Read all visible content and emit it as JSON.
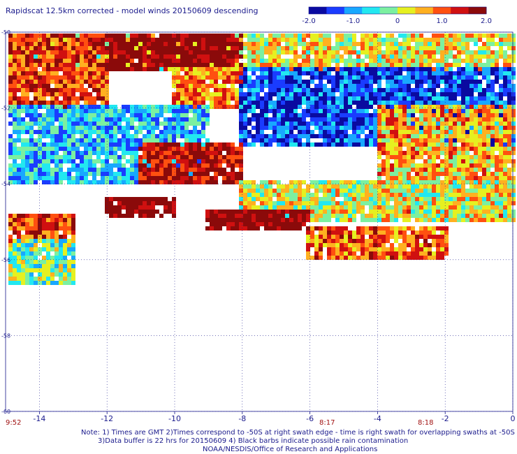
{
  "title": "Rapidscat 12.5km corrected - model winds 20150609 descending",
  "colorbar": {
    "ticks": [
      "-2.0",
      "-1.0",
      "0",
      "1.0",
      "2.0"
    ],
    "range": [
      -2.0,
      2.0
    ],
    "colors": [
      "#0a0aa0",
      "#1a3cff",
      "#18a8ff",
      "#22e8f0",
      "#7cf0a0",
      "#e6f020",
      "#ffb020",
      "#ff5010",
      "#d01010",
      "#8b0a0a"
    ]
  },
  "time_labels": [
    "9:52",
    "8:17",
    "8:18"
  ],
  "notes": [
    "Note: 1) Times are GMT 2)Times correspond to -50S at right swath edge - time is right swath for overlapping swaths at -50S",
    "3)Data buffer is 22 hrs for 20150609 4) Black barbs indicate possible rain contamination",
    "NOAA/NESDIS/Office of Research and Applications"
  ],
  "chart_data": {
    "type": "heatmap",
    "title": "Rapidscat 12.5km corrected - model winds 20150609 descending",
    "xlabel": "",
    "ylabel": "",
    "xlim": [
      -15,
      0
    ],
    "ylim": [
      -60,
      -50
    ],
    "x_ticks": [
      "-14",
      "-12",
      "-10",
      "-8",
      "-6",
      "-4",
      "-2",
      "0"
    ],
    "y_ticks": [
      "-50",
      "-52",
      "-54",
      "-56",
      "-58",
      "-60"
    ],
    "grid": true,
    "color_range": [
      -2.0,
      2.0
    ],
    "regions": [
      {
        "lon": [
          -15,
          0
        ],
        "lat": [
          -51,
          -50
        ],
        "mean": 0.3
      },
      {
        "lon": [
          -15,
          -12
        ],
        "lat": [
          -52,
          -50
        ],
        "mean": 1.2
      },
      {
        "lon": [
          -12,
          -8
        ],
        "lat": [
          -51,
          -50
        ],
        "mean": 2.0
      },
      {
        "lon": [
          -10,
          -8
        ],
        "lat": [
          -52,
          -51
        ],
        "mean": 0.8
      },
      {
        "lon": [
          -8,
          0
        ],
        "lat": [
          -53,
          -51
        ],
        "mean": -1.4
      },
      {
        "lon": [
          -15,
          -9
        ],
        "lat": [
          -54,
          -52
        ],
        "mean": -0.8
      },
      {
        "lon": [
          -11,
          -8
        ],
        "lat": [
          -54,
          -53
        ],
        "mean": 1.6
      },
      {
        "lon": [
          -4,
          0
        ],
        "lat": [
          -55,
          -52
        ],
        "mean": 0.6
      },
      {
        "lon": [
          -8,
          0
        ],
        "lat": [
          -55,
          -54
        ],
        "mean": 0.2
      },
      {
        "lon": [
          -12,
          -10
        ],
        "lat": [
          -54.8,
          -54.4
        ],
        "mean": 2.0
      },
      {
        "lon": [
          -9,
          -6
        ],
        "lat": [
          -55.2,
          -54.7
        ],
        "mean": 2.0
      },
      {
        "lon": [
          -6,
          -2
        ],
        "lat": [
          -56,
          -55.2
        ],
        "mean": 1.0
      },
      {
        "lon": [
          -15,
          -13
        ],
        "lat": [
          -55.5,
          -54.8
        ],
        "mean": 1.3
      },
      {
        "lon": [
          -15,
          -13
        ],
        "lat": [
          -56.6,
          -55.5
        ],
        "mean": -0.2
      }
    ]
  }
}
